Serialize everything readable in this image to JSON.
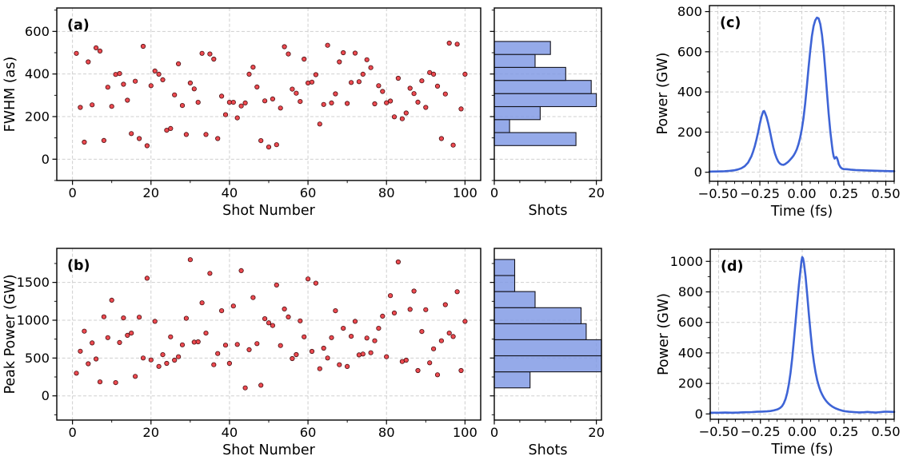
{
  "figure": {
    "kind": "scientific-figure",
    "background": "#ffffff",
    "panel_letters": [
      "(a)",
      "(b)",
      "(c)",
      "(d)"
    ]
  },
  "colors": {
    "scatter_fill": "#ea3b41",
    "scatter_edge": "#4a0d10",
    "hist_fill": "#7e97e4",
    "hist_edge": "#14141e",
    "line": "#3e64d6",
    "grid": "#cfcfcf",
    "axis": "#000000",
    "text": "#000000"
  },
  "chart_data": [
    {
      "id": "scatter-a",
      "type": "scatter",
      "panel_label": "(a)",
      "xlabel": "Shot Number",
      "ylabel": "FWHM (as)",
      "xlim": [
        -4,
        104
      ],
      "ylim": [
        -100,
        710
      ],
      "xticks": [
        0,
        20,
        40,
        60,
        80,
        100
      ],
      "yticks": [
        0,
        200,
        400,
        600
      ],
      "grid": true,
      "x_rule": "shot index 1..100",
      "y": [
        497,
        243,
        80,
        457,
        255,
        523,
        508,
        88,
        338,
        248,
        398,
        402,
        352,
        277,
        120,
        366,
        97,
        530,
        63,
        345,
        414,
        399,
        373,
        136,
        144,
        302,
        448,
        252,
        116,
        358,
        330,
        267,
        497,
        116,
        494,
        470,
        97,
        296,
        209,
        267,
        267,
        194,
        250,
        264,
        399,
        432,
        339,
        87,
        274,
        57,
        283,
        68,
        240,
        528,
        494,
        329,
        310,
        271,
        470,
        358,
        362,
        397,
        165,
        257,
        535,
        264,
        307,
        457,
        500,
        262,
        360,
        498,
        364,
        399,
        467,
        430,
        260,
        345,
        318,
        265,
        273,
        199,
        380,
        190,
        217,
        333,
        308,
        268,
        368,
        243,
        407,
        399,
        343,
        97,
        306,
        545,
        66,
        540,
        236,
        399
      ]
    },
    {
      "id": "hist-a",
      "type": "bar-h",
      "xlabel": "Shots",
      "ylabel": "",
      "xlim": [
        0,
        21
      ],
      "ylim": [
        -100,
        710
      ],
      "xticks": [
        0,
        20
      ],
      "yticks": [
        0,
        200,
        400,
        600
      ],
      "ytick_labels_visible": false,
      "grid": true,
      "bin_edges": [
        64,
        125,
        186,
        247,
        308,
        370,
        431,
        492,
        553
      ],
      "counts": [
        16,
        3,
        9,
        20,
        19,
        14,
        8,
        11
      ]
    },
    {
      "id": "line-c",
      "type": "line",
      "panel_label": "(c)",
      "xlabel": "Time (fs)",
      "ylabel": "Power (GW)",
      "xlim": [
        -0.55,
        0.55
      ],
      "ylim": [
        -45,
        830
      ],
      "xticks": [
        -0.5,
        -0.25,
        0,
        0.25,
        0.5
      ],
      "xtick_labels": [
        "−0.50",
        "−0.25",
        "0.00",
        "0.25",
        "0.50"
      ],
      "yticks": [
        0,
        200,
        400,
        600,
        800
      ],
      "grid": true,
      "points": [
        [
          -0.55,
          3
        ],
        [
          -0.5,
          4
        ],
        [
          -0.46,
          5
        ],
        [
          -0.43,
          7
        ],
        [
          -0.4,
          10
        ],
        [
          -0.38,
          14
        ],
        [
          -0.36,
          20
        ],
        [
          -0.34,
          30
        ],
        [
          -0.32,
          48
        ],
        [
          -0.3,
          80
        ],
        [
          -0.29,
          103
        ],
        [
          -0.28,
          130
        ],
        [
          -0.27,
          163
        ],
        [
          -0.26,
          200
        ],
        [
          -0.25,
          242
        ],
        [
          -0.24,
          278
        ],
        [
          -0.23,
          303
        ],
        [
          -0.225,
          305
        ],
        [
          -0.22,
          298
        ],
        [
          -0.21,
          275
        ],
        [
          -0.2,
          243
        ],
        [
          -0.19,
          205
        ],
        [
          -0.18,
          163
        ],
        [
          -0.17,
          125
        ],
        [
          -0.16,
          93
        ],
        [
          -0.15,
          70
        ],
        [
          -0.14,
          53
        ],
        [
          -0.13,
          43
        ],
        [
          -0.12,
          38
        ],
        [
          -0.11,
          37
        ],
        [
          -0.1,
          40
        ],
        [
          -0.09,
          46
        ],
        [
          -0.08,
          53
        ],
        [
          -0.07,
          62
        ],
        [
          -0.06,
          71
        ],
        [
          -0.05,
          82
        ],
        [
          -0.04,
          96
        ],
        [
          -0.03,
          114
        ],
        [
          -0.02,
          139
        ],
        [
          -0.01,
          172
        ],
        [
          0.0,
          215
        ],
        [
          0.01,
          270
        ],
        [
          0.02,
          342
        ],
        [
          0.03,
          428
        ],
        [
          0.04,
          520
        ],
        [
          0.05,
          605
        ],
        [
          0.06,
          678
        ],
        [
          0.07,
          728
        ],
        [
          0.08,
          757
        ],
        [
          0.09,
          770
        ],
        [
          0.1,
          766
        ],
        [
          0.11,
          738
        ],
        [
          0.12,
          685
        ],
        [
          0.13,
          607
        ],
        [
          0.14,
          505
        ],
        [
          0.15,
          395
        ],
        [
          0.16,
          290
        ],
        [
          0.17,
          200
        ],
        [
          0.18,
          130
        ],
        [
          0.185,
          100
        ],
        [
          0.19,
          78
        ],
        [
          0.195,
          68
        ],
        [
          0.2,
          72
        ],
        [
          0.205,
          76
        ],
        [
          0.21,
          70
        ],
        [
          0.215,
          56
        ],
        [
          0.22,
          40
        ],
        [
          0.23,
          25
        ],
        [
          0.24,
          18
        ],
        [
          0.25,
          16
        ],
        [
          0.27,
          15
        ],
        [
          0.29,
          13
        ],
        [
          0.32,
          11
        ],
        [
          0.35,
          10
        ],
        [
          0.38,
          9
        ],
        [
          0.42,
          8
        ],
        [
          0.46,
          7
        ],
        [
          0.5,
          6
        ],
        [
          0.55,
          5
        ]
      ]
    },
    {
      "id": "scatter-b",
      "type": "scatter",
      "panel_label": "(b)",
      "xlabel": "Shot Number",
      "ylabel": "Peak Power (GW)",
      "xlim": [
        -4,
        104
      ],
      "ylim": [
        -320,
        1950
      ],
      "xticks": [
        0,
        20,
        40,
        60,
        80,
        100
      ],
      "yticks": [
        0,
        500,
        1000,
        1500
      ],
      "grid": true,
      "x_rule": "shot index 1..100",
      "y": [
        300,
        590,
        855,
        424,
        700,
        488,
        185,
        1045,
        770,
        1265,
        175,
        705,
        1030,
        800,
        830,
        258,
        1040,
        500,
        1555,
        475,
        985,
        390,
        545,
        430,
        780,
        472,
        517,
        675,
        1025,
        1800,
        710,
        715,
        1230,
        830,
        1620,
        412,
        560,
        1125,
        670,
        430,
        1188,
        680,
        1655,
        105,
        610,
        1300,
        690,
        140,
        1020,
        965,
        930,
        1465,
        665,
        1149,
        1043,
        493,
        546,
        991,
        780,
        1546,
        588,
        1490,
        359,
        630,
        500,
        770,
        1125,
        412,
        893,
        388,
        788,
        985,
        542,
        553,
        764,
        570,
        728,
        893,
        1054,
        517,
        1325,
        1096,
        1770,
        454,
        472,
        1143,
        1385,
        335,
        851,
        1139,
        437,
        622,
        279,
        728,
        1206,
        830,
        784,
        1377,
        335,
        985
      ]
    },
    {
      "id": "hist-b",
      "type": "bar-h",
      "xlabel": "Shots",
      "ylabel": "",
      "xlim": [
        0,
        21
      ],
      "ylim": [
        -320,
        1950
      ],
      "xticks": [
        0,
        20
      ],
      "yticks": [
        0,
        500,
        1000,
        1500
      ],
      "ytick_labels_visible": false,
      "grid": true,
      "bin_edges": [
        106,
        318,
        530,
        742,
        954,
        1166,
        1379,
        1591,
        1803
      ],
      "counts": [
        7,
        21,
        21,
        18,
        17,
        8,
        4,
        4
      ]
    },
    {
      "id": "line-d",
      "type": "line",
      "panel_label": "(d)",
      "xlabel": "Time (fs)",
      "ylabel": "Power (GW)",
      "xlim": [
        -0.55,
        0.55
      ],
      "ylim": [
        -35,
        1080
      ],
      "xticks": [
        -0.5,
        -0.25,
        0,
        0.25,
        0.5
      ],
      "xtick_labels": [
        "−0.50",
        "−0.25",
        "0.00",
        "0.25",
        "0.50"
      ],
      "yticks": [
        0,
        200,
        400,
        600,
        800,
        1000
      ],
      "grid": true,
      "points": [
        [
          -0.55,
          8
        ],
        [
          -0.5,
          8
        ],
        [
          -0.46,
          9
        ],
        [
          -0.42,
          8
        ],
        [
          -0.38,
          9
        ],
        [
          -0.34,
          11
        ],
        [
          -0.3,
          12
        ],
        [
          -0.27,
          14
        ],
        [
          -0.24,
          15
        ],
        [
          -0.21,
          17
        ],
        [
          -0.19,
          19
        ],
        [
          -0.17,
          23
        ],
        [
          -0.15,
          29
        ],
        [
          -0.14,
          34
        ],
        [
          -0.13,
          41
        ],
        [
          -0.12,
          52
        ],
        [
          -0.11,
          70
        ],
        [
          -0.1,
          97
        ],
        [
          -0.09,
          138
        ],
        [
          -0.08,
          195
        ],
        [
          -0.07,
          270
        ],
        [
          -0.06,
          366
        ],
        [
          -0.05,
          478
        ],
        [
          -0.04,
          600
        ],
        [
          -0.03,
          725
        ],
        [
          -0.02,
          843
        ],
        [
          -0.01,
          945
        ],
        [
          -0.005,
          1000
        ],
        [
          0.0,
          1028
        ],
        [
          0.005,
          1020
        ],
        [
          0.01,
          990
        ],
        [
          0.02,
          900
        ],
        [
          0.03,
          778
        ],
        [
          0.04,
          648
        ],
        [
          0.05,
          528
        ],
        [
          0.06,
          424
        ],
        [
          0.07,
          340
        ],
        [
          0.08,
          272
        ],
        [
          0.09,
          220
        ],
        [
          0.1,
          180
        ],
        [
          0.11,
          149
        ],
        [
          0.12,
          125
        ],
        [
          0.13,
          105
        ],
        [
          0.14,
          89
        ],
        [
          0.15,
          76
        ],
        [
          0.16,
          65
        ],
        [
          0.17,
          56
        ],
        [
          0.18,
          48
        ],
        [
          0.19,
          42
        ],
        [
          0.2,
          36
        ],
        [
          0.22,
          28
        ],
        [
          0.24,
          21
        ],
        [
          0.26,
          17
        ],
        [
          0.28,
          14
        ],
        [
          0.31,
          12
        ],
        [
          0.34,
          10
        ],
        [
          0.37,
          11
        ],
        [
          0.39,
          13
        ],
        [
          0.41,
          11
        ],
        [
          0.44,
          9
        ],
        [
          0.47,
          12
        ],
        [
          0.49,
          14
        ],
        [
          0.51,
          14
        ],
        [
          0.55,
          13
        ]
      ]
    }
  ]
}
